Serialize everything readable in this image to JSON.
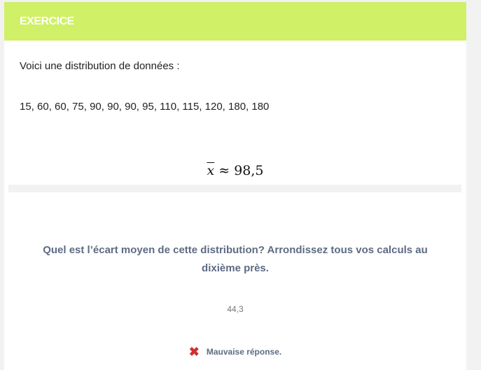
{
  "header": {
    "title": "EXERCICE",
    "color": "#cff067"
  },
  "intro": "Voici une distribution de données :",
  "values": "15, 60, 60, 75, 90, 90, 90, 95, 110, 115, 120, 180, 180",
  "mean": {
    "symbol": "x",
    "approx": "≈",
    "value": "98,5"
  },
  "question": "Quel est l’écart moyen de cette distribution? Arrondissez tous vos calculs au dixième près.",
  "answer": "44,3",
  "feedback": {
    "icon": "close-icon",
    "text": "Mauvaise réponse.",
    "color": "#d32f2f"
  }
}
